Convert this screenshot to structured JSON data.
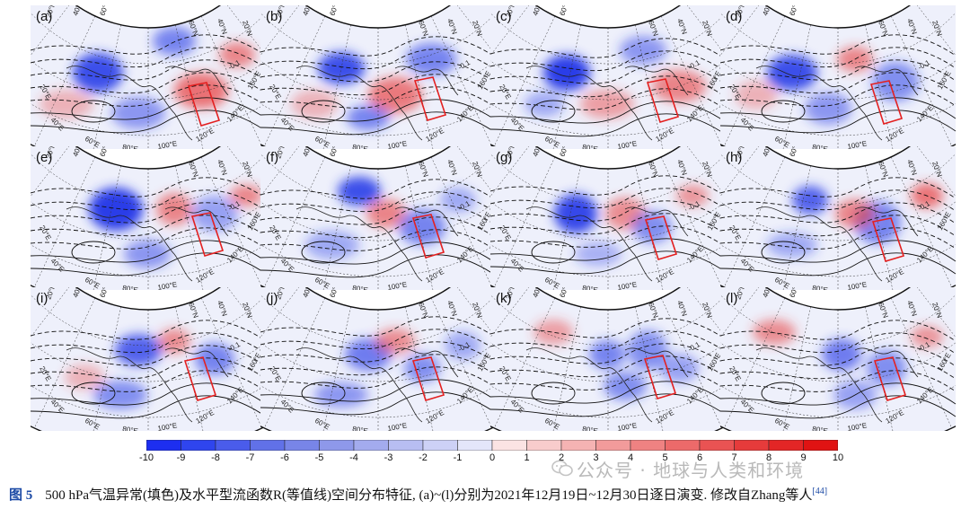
{
  "panels": [
    {
      "label": "(a)"
    },
    {
      "label": "(b)"
    },
    {
      "label": "(c)"
    },
    {
      "label": "(d)"
    },
    {
      "label": "(e)"
    },
    {
      "label": "(f)"
    },
    {
      "label": "(g)"
    },
    {
      "label": "(h)"
    },
    {
      "label": "(i)"
    },
    {
      "label": "(j)"
    },
    {
      "label": "(k)"
    },
    {
      "label": "(l)"
    }
  ],
  "map_labels": {
    "lat_left": [
      "20°N",
      "40°N",
      "60°N"
    ],
    "lat_right": [
      "60°N",
      "40°N",
      "20°N"
    ],
    "lon": [
      "20°E",
      "40°E",
      "60°E",
      "80°E",
      "100°E",
      "120°E",
      "140°E",
      "160°E"
    ]
  },
  "contour_label": "-0.1",
  "colorbar": {
    "ticks": [
      "-10",
      "-9",
      "-8",
      "-7",
      "-6",
      "-5",
      "-4",
      "-3",
      "-2",
      "-1",
      "0",
      "1",
      "2",
      "3",
      "4",
      "5",
      "6",
      "7",
      "8",
      "9",
      "10"
    ],
    "colors": [
      "#1d2ef0",
      "#2f45ee",
      "#4a5ceb",
      "#6171e8",
      "#7885e8",
      "#8e98ea",
      "#a3abee",
      "#b8bef2",
      "#cdd1f6",
      "#e4e6fa",
      "#fbe3e3",
      "#f8cccc",
      "#f5b3b3",
      "#f29b9b",
      "#ef8282",
      "#ec6a6a",
      "#e95353",
      "#e63b3b",
      "#e32626",
      "#e01313"
    ],
    "blue": "#1d2ef0",
    "red": "#e01313"
  },
  "colors": {
    "box": "#e32020",
    "coast": "#222222",
    "figure_label": "#1c4aa5"
  },
  "watermark": "公众号 · 地球与人类和环境",
  "caption": {
    "fig_label": "图 5",
    "text": "500 hPa气温异常(填色)及水平型流函数R(等值线)空间分布特征, (a)~(l)分别为2021年12月19日~12月30日逐日演变. 修改自Zhang等人",
    "ref": "[44]"
  }
}
